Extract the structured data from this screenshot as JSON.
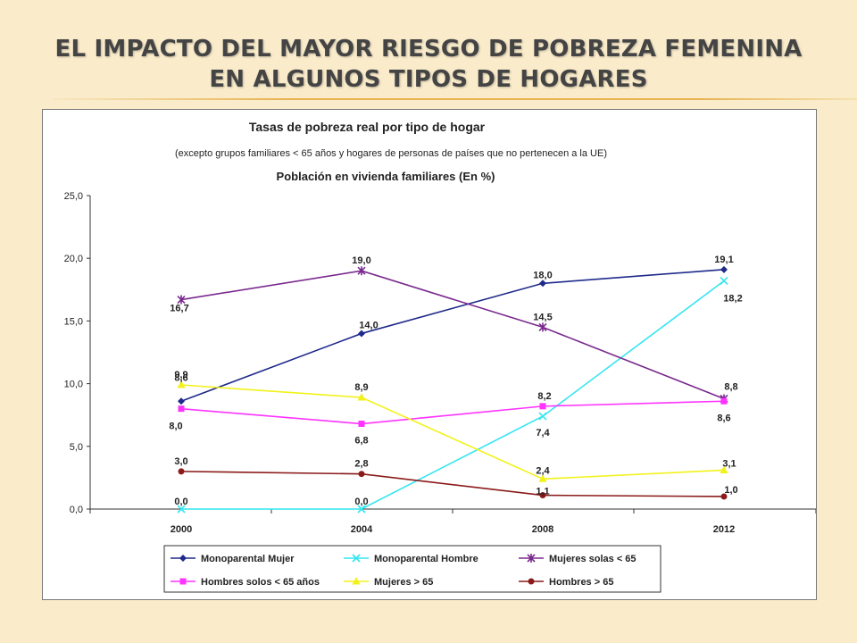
{
  "slide": {
    "title": "EL IMPACTO DEL MAYOR RIESGO DE POBREZA FEMENINA EN ALGUNOS TIPOS DE HOGARES"
  },
  "chart_data": {
    "type": "line",
    "title": "Tasas de pobreza real por tipo de hogar",
    "subtitle": "(excepto grupos familiares < 65 años y hogares de personas de países que no pertenecen a la UE)",
    "subtitle2": "Población en vivienda familiares (En %)",
    "xlabel": "",
    "ylabel": "",
    "categories": [
      "2000",
      "2004",
      "2008",
      "2012"
    ],
    "ylim": [
      0,
      25
    ],
    "yticks": [
      "0,0",
      "5,0",
      "10,0",
      "15,0",
      "20,0",
      "25,0"
    ],
    "grid": false,
    "legend_position": "bottom",
    "series": [
      {
        "name": "Monoparental Mujer",
        "values": [
          8.6,
          14.0,
          18.0,
          19.1
        ],
        "labels": [
          "8,6",
          "14,0",
          "18,0",
          "19,1"
        ],
        "color": "#1f2a8a",
        "marker": "diamond"
      },
      {
        "name": "Monoparental Hombre",
        "values": [
          0.0,
          0.0,
          7.4,
          18.2
        ],
        "labels": [
          "0,0",
          "0,0",
          "7,4",
          "18,2"
        ],
        "color": "#33e6f0",
        "marker": "x"
      },
      {
        "name": "Mujeres solas < 65",
        "values": [
          16.7,
          19.0,
          14.5,
          8.8
        ],
        "labels": [
          "16,7",
          "19,0",
          "14,5",
          "8,8"
        ],
        "color": "#7a2a8e",
        "marker": "star"
      },
      {
        "name": "Hombres solos < 65 años",
        "values": [
          8.0,
          6.8,
          8.2,
          8.6
        ],
        "labels": [
          "8,0",
          "6,8",
          "8,2",
          "8,6"
        ],
        "color": "#ff33ff",
        "marker": "square"
      },
      {
        "name": "Mujeres > 65",
        "values": [
          9.9,
          8.9,
          2.4,
          3.1
        ],
        "labels": [
          "9,9",
          "8,9",
          "2,4",
          "3,1"
        ],
        "color": "#f2f21a",
        "marker": "triangle"
      },
      {
        "name": "Hombres > 65",
        "values": [
          3.0,
          2.8,
          1.1,
          1.0
        ],
        "labels": [
          "3,0",
          "2,8",
          "1,1",
          "1,0"
        ],
        "color": "#8b1a1a",
        "marker": "circle"
      }
    ]
  }
}
